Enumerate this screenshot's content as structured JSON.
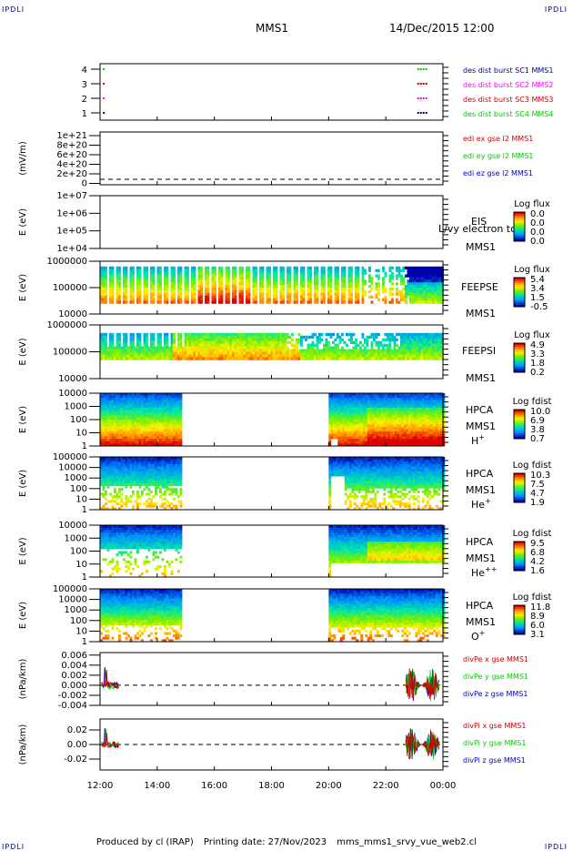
{
  "corner_label": "IPDLI",
  "header": {
    "mission": "MMS1",
    "datetime": "14/Dec/2015 12:00"
  },
  "time_axis": [
    "12:00",
    "14:00",
    "16:00",
    "18:00",
    "20:00",
    "22:00",
    "00:00"
  ],
  "footer": {
    "produced": "Produced by cl (IRAP)",
    "printing": "Printing date: 27/Nov/2023",
    "file": "mms_mms1_srvy_vue_web2.cl"
  },
  "colors": {
    "sc1": "#00008b",
    "sc2": "#ff00ff",
    "sc3": "#cc0000",
    "sc4": "#00cc00",
    "x": "#cc0000",
    "y": "#00cc00",
    "z": "#0000cc"
  },
  "chart_data": [
    {
      "type": "scatter",
      "name": "burst",
      "yticks": [
        "1",
        "2",
        "3",
        "4"
      ],
      "legend": [
        {
          "label": "des dist burst SC1 MMS1",
          "color": "#00008b"
        },
        {
          "label": "des dist burst SC2 MMS2",
          "color": "#ff00ff"
        },
        {
          "label": "des dist burst SC3 MMS3",
          "color": "#cc0000"
        },
        {
          "label": "des dist burst SC4 MMS4",
          "color": "#00cc00"
        }
      ]
    },
    {
      "type": "line",
      "name": "edi",
      "ylabel": "(mV/m)",
      "yticks": [
        "1e+21",
        "8e+20",
        "6e+20",
        "4e+20",
        "2e+20",
        "0"
      ],
      "legend": [
        {
          "label": "edi ex gse l2 MMS1",
          "color": "#cc0000"
        },
        {
          "label": "edi ey gse l2 MMS1",
          "color": "#00cc00"
        },
        {
          "label": "edi ez gse l2 MMS1",
          "color": "#0000cc"
        }
      ]
    },
    {
      "type": "heatmap",
      "name": "eis",
      "ylabel": "E (eV)",
      "yticks": [
        "1e+07",
        "1e+06",
        "1e+05",
        "1e+04"
      ],
      "instrument": [
        "EIS",
        "MMS1"
      ],
      "overlay_label": "L/vy electron tc",
      "cbar_title": "Log flux",
      "cbar_ticks": [
        "0.0",
        "0.0",
        "0.0",
        "0.0"
      ]
    },
    {
      "type": "heatmap",
      "name": "feepse",
      "ylabel": "E (eV)",
      "yticks": [
        "1000000",
        "100000",
        "10000"
      ],
      "instrument": [
        "FEEPSE",
        "MMS1"
      ],
      "cbar_title": "Log flux",
      "cbar_ticks": [
        "5.4",
        "3.4",
        "1.5",
        "-0.5"
      ]
    },
    {
      "type": "heatmap",
      "name": "feepsi",
      "ylabel": "E (eV)",
      "yticks": [
        "1000000",
        "100000",
        "10000"
      ],
      "instrument": [
        "FEEPSI",
        "MMS1"
      ],
      "cbar_title": "Log flux",
      "cbar_ticks": [
        "4.9",
        "3.3",
        "1.8",
        "0.2"
      ]
    },
    {
      "type": "heatmap",
      "name": "hpca-h",
      "ylabel": "E (eV)",
      "yticks": [
        "10000",
        "1000",
        "100",
        "10",
        "1"
      ],
      "instrument": [
        "HPCA",
        "MMS1",
        "H+"
      ],
      "cbar_title": "Log fdist",
      "cbar_ticks": [
        "10.0",
        "6.9",
        "3.8",
        "0.7"
      ]
    },
    {
      "type": "heatmap",
      "name": "hpca-he",
      "ylabel": "E (eV)",
      "yticks": [
        "100000",
        "10000",
        "1000",
        "100",
        "10",
        "1"
      ],
      "instrument": [
        "HPCA",
        "MMS1",
        "He+"
      ],
      "cbar_title": "Log fdist",
      "cbar_ticks": [
        "10.3",
        "7.5",
        "4.7",
        "1.9"
      ]
    },
    {
      "type": "heatmap",
      "name": "hpca-he2",
      "ylabel": "E (eV)",
      "yticks": [
        "10000",
        "1000",
        "100",
        "10",
        "1"
      ],
      "instrument": [
        "HPCA",
        "MMS1",
        "He++"
      ],
      "cbar_title": "Log fdist",
      "cbar_ticks": [
        "9.5",
        "6.8",
        "4.2",
        "1.6"
      ]
    },
    {
      "type": "heatmap",
      "name": "hpca-o",
      "ylabel": "E (eV)",
      "yticks": [
        "100000",
        "10000",
        "1000",
        "100",
        "10",
        "1"
      ],
      "instrument": [
        "HPCA",
        "MMS1",
        "O+"
      ],
      "cbar_title": "Log fdist",
      "cbar_ticks": [
        "11.8",
        "8.9",
        "6.0",
        "3.1"
      ]
    },
    {
      "type": "line",
      "name": "divpe",
      "ylabel": "(nPa/km)",
      "yticks": [
        "0.006",
        "0.004",
        "0.002",
        "0.000",
        "-0.002",
        "-0.004"
      ],
      "ylim": [
        -0.004,
        0.0065
      ],
      "legend": [
        {
          "label": "divPe x gse MMS1",
          "color": "#cc0000"
        },
        {
          "label": "divPe y gse MMS1",
          "color": "#00cc00"
        },
        {
          "label": "divPe z gse MMS1",
          "color": "#0000cc"
        }
      ]
    },
    {
      "type": "line",
      "name": "divpi",
      "ylabel": "(nPa/km)",
      "yticks": [
        "0.02",
        "0.00",
        "-0.02"
      ],
      "ylim": [
        -0.035,
        0.035
      ],
      "legend": [
        {
          "label": "divPi x gse MMS1",
          "color": "#cc0000"
        },
        {
          "label": "divPi y gse MMS1",
          "color": "#00cc00"
        },
        {
          "label": "divPi z gse MMS1",
          "color": "#0000cc"
        }
      ]
    }
  ]
}
